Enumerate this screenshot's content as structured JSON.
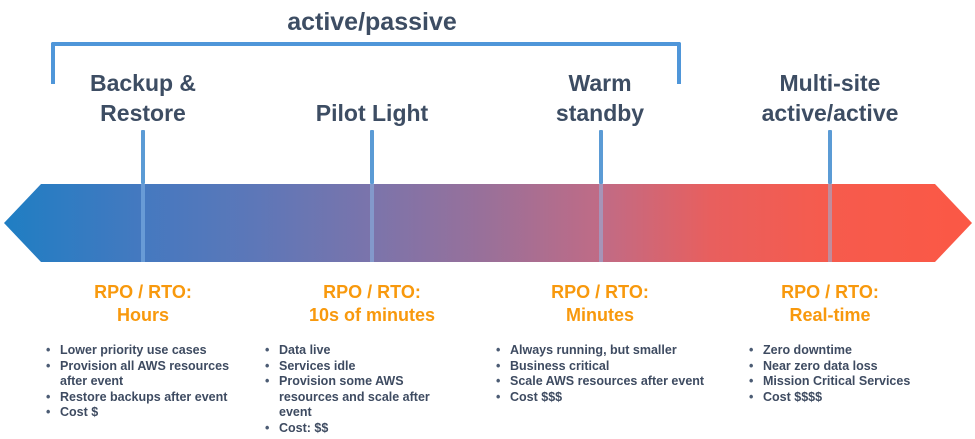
{
  "diagram": {
    "bracket_title": "active/passive",
    "strategies": [
      {
        "line1": "Backup &",
        "line2": "Restore",
        "rpo_label": "RPO / RTO:",
        "rpo_value": "Hours",
        "bullets": [
          "Lower priority use cases",
          "Provision all AWS resources after event",
          "Restore backups after event",
          "Cost $"
        ]
      },
      {
        "line1": "",
        "line2": "Pilot Light",
        "rpo_label": "RPO / RTO:",
        "rpo_value": "10s of minutes",
        "bullets": [
          "Data live",
          "Services idle",
          "Provision some AWS resources and scale after event",
          "Cost: $$"
        ]
      },
      {
        "line1": "Warm",
        "line2": "standby",
        "rpo_label": "RPO / RTO:",
        "rpo_value": "Minutes",
        "bullets": [
          "Always running, but smaller",
          "Business critical",
          "Scale AWS resources after event",
          "Cost $$$"
        ]
      },
      {
        "line1": "Multi-site",
        "line2": "active/active",
        "rpo_label": "RPO / RTO:",
        "rpo_value": "Real-time",
        "bullets": [
          "Zero downtime",
          "Near zero data loss",
          "Mission Critical Services",
          "Cost $$$$"
        ]
      }
    ],
    "colors": {
      "heading_navy": "#3d4d63",
      "bracket_blue": "#4f96d9",
      "connector_blue": "#5b9bd5",
      "rpo_orange": "#f8990d",
      "arrow_gradient_start": "#1f7ec3",
      "arrow_gradient_end": "#fb5845"
    }
  }
}
